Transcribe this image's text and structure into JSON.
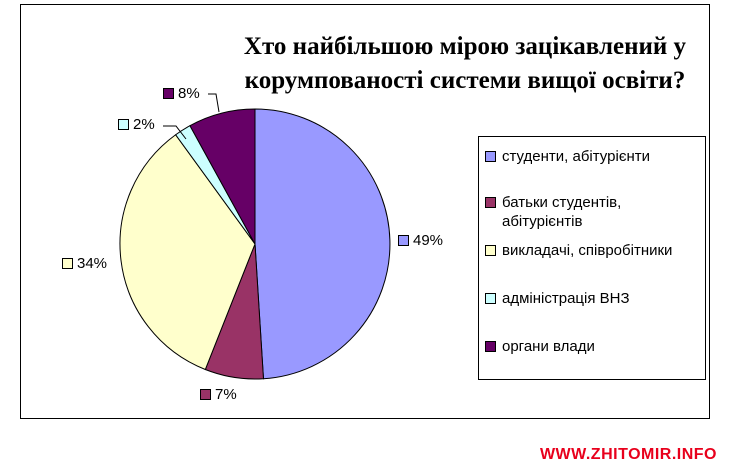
{
  "chart_data": {
    "type": "pie",
    "title_lines": [
      "Хто найбільшою мірою зацікавлений у",
      "корумпованості системи вищої освіти?"
    ],
    "categories": [
      "студенти, абітурієнти",
      "батьки студентів, абітурієнтів",
      "викладачі, співробітники",
      "адміністрація ВНЗ",
      "органи влади"
    ],
    "values": [
      49,
      7,
      34,
      2,
      8
    ],
    "value_labels": [
      "49%",
      "7%",
      "34%",
      "2%",
      "8%"
    ],
    "colors": [
      "#9999ff",
      "#993366",
      "#ffffcc",
      "#ccffff",
      "#660066"
    ],
    "legend_position": "right",
    "start": "top, clockwise"
  },
  "watermark": "WWW.ZHITOMIR.INFO"
}
